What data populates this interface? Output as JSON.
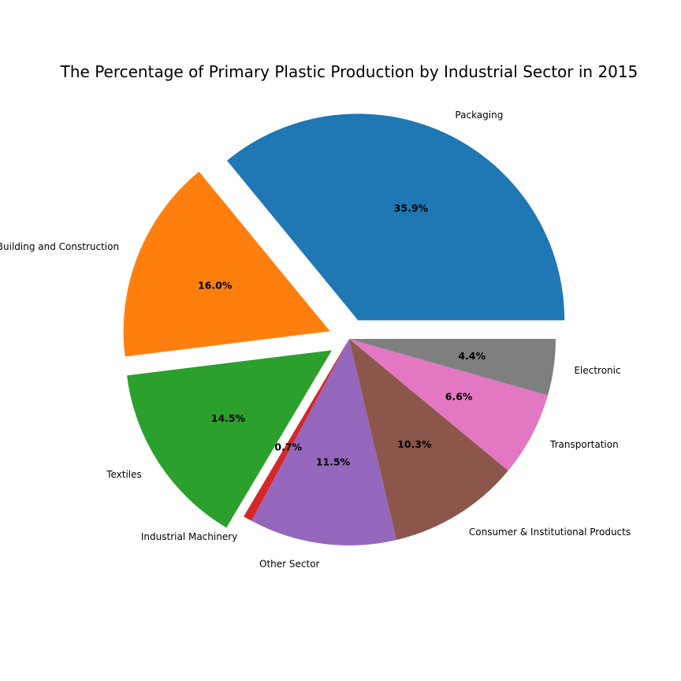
{
  "chart_data": {
    "type": "pie",
    "title": "The Percentage of Primary Plastic Production by Industrial Sector in 2015",
    "start_angle_deg": 0,
    "direction": "counterclockwise",
    "slices": [
      {
        "label": "Packaging",
        "value": 35.9,
        "pct_label": "35.9%",
        "color": "#1f77b4",
        "explode": 0.1
      },
      {
        "label": "Building and Construction",
        "value": 16.0,
        "pct_label": "16.0%",
        "color": "#ff7f0e",
        "explode": 0.1
      },
      {
        "label": "Textiles",
        "value": 14.5,
        "pct_label": "14.5%",
        "color": "#2ca02c",
        "explode": 0.1
      },
      {
        "label": "Industrial Machinery",
        "value": 0.7,
        "pct_label": "0.7%",
        "color": "#d62728",
        "explode": 0.0
      },
      {
        "label": "Other Sector",
        "value": 11.5,
        "pct_label": "11.5%",
        "color": "#9467bd",
        "explode": 0.0
      },
      {
        "label": "Consumer & Institutional Products",
        "value": 10.3,
        "pct_label": "10.3%",
        "color": "#8c564b",
        "explode": 0.0
      },
      {
        "label": "Transportation",
        "value": 6.6,
        "pct_label": "6.6%",
        "color": "#e377c2",
        "explode": 0.0
      },
      {
        "label": "Electronic",
        "value": 4.4,
        "pct_label": "4.4%",
        "color": "#7f7f7f",
        "explode": 0.0
      }
    ]
  }
}
